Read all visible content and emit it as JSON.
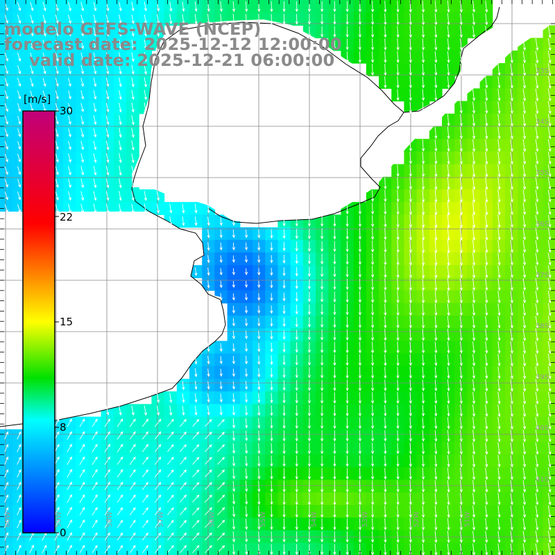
{
  "titles": {
    "model": "modelo GEFS-WAVE (NCEP)",
    "forecast": "forecast date: 2025-12-12 12:00:00",
    "valid": "valid date: 2025-12-21 06:00:00"
  },
  "colorbar": {
    "unit": "[m/s]",
    "ticks": [
      "30",
      "22",
      "15",
      "8",
      "0"
    ],
    "range": [
      0,
      30
    ],
    "stops": [
      {
        "v": 0,
        "color": "#0000ff"
      },
      {
        "v": 8,
        "color": "#00ffff"
      },
      {
        "v": 11,
        "color": "#00e000"
      },
      {
        "v": 15,
        "color": "#ffff00"
      },
      {
        "v": 22,
        "color": "#ff0000"
      },
      {
        "v": 30,
        "color": "#c0007a"
      }
    ]
  },
  "map": {
    "land_color": "#ffffff",
    "coastline_color": "#000000",
    "grid_color": "#888888",
    "vector_color": "#ffffff",
    "lon_labels": [
      "60W",
      "59W",
      "58W",
      "57W",
      "56W",
      "55W",
      "54W",
      "53W",
      "52W",
      "51W"
    ],
    "lat_labels": [
      "33S",
      "34S",
      "35S",
      "36S",
      "37S",
      "38S",
      "39S",
      "40S",
      "41S"
    ]
  }
}
